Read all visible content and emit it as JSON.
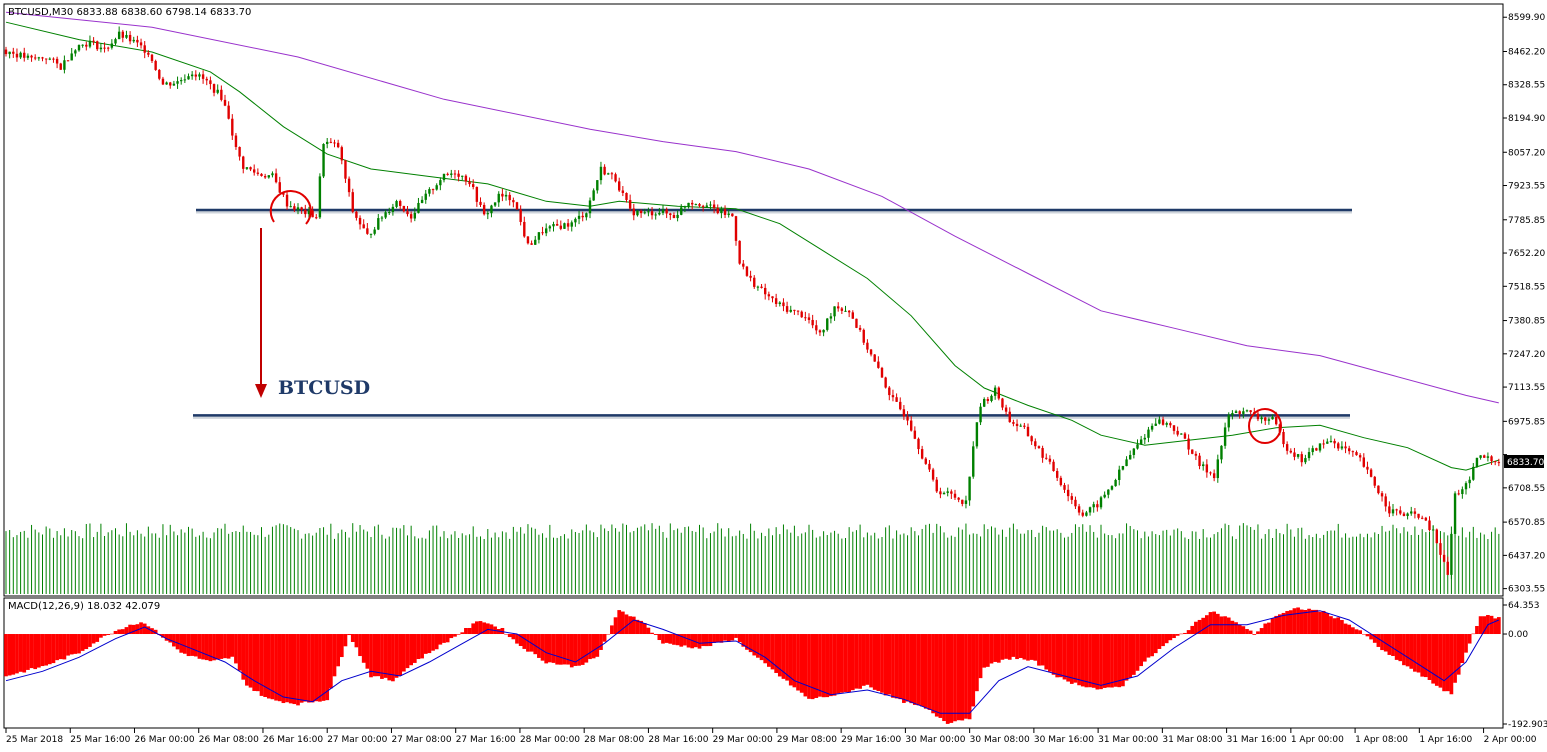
{
  "window": {
    "title": "BTCUSD,M30  6833.88 6838.60 6798.14 6833.70"
  },
  "chart_data": [
    {
      "type": "candlestick",
      "symbol": "BTCUSD",
      "timeframe": "M30",
      "ohlc_header": {
        "open": 6833.88,
        "high": 6838.6,
        "low": 6798.14,
        "close": 6833.7
      },
      "y_ticks": [
        8599.9,
        8462.2,
        8328.55,
        8194.9,
        8057.2,
        7923.55,
        7785.85,
        7652.2,
        7518.55,
        7380.85,
        7247.2,
        7113.55,
        6975.85,
        6842.2,
        6708.55,
        6570.85,
        6437.2,
        6303.55
      ],
      "y_tick_labels": [
        "8599.90",
        "8462.20",
        "8328.55",
        "8194.90",
        "8057.20",
        "7923.55",
        "7785.85",
        "7652.20",
        "7518.55",
        "7380.85",
        "7247.20",
        "7113.55",
        "6975.85",
        "6708.55",
        "6570.85",
        "6437.20",
        "6303.55"
      ],
      "ylim": [
        6290,
        8645
      ],
      "x_tick_labels": [
        "25 Mar 2018",
        "25 Mar 16:00",
        "26 Mar 00:00",
        "26 Mar 08:00",
        "26 Mar 16:00",
        "27 Mar 00:00",
        "27 Mar 08:00",
        "27 Mar 16:00",
        "28 Mar 00:00",
        "28 Mar 08:00",
        "28 Mar 16:00",
        "29 Mar 00:00",
        "29 Mar 08:00",
        "29 Mar 16:00",
        "30 Mar 00:00",
        "30 Mar 08:00",
        "30 Mar 16:00",
        "31 Mar 00:00",
        "31 Mar 08:00",
        "31 Mar 16:00",
        "1 Apr 00:00",
        "1 Apr 08:00",
        "1 Apr 16:00",
        "2 Apr 00:00"
      ],
      "current_price": {
        "value": 6833.7,
        "label": "6833.70"
      },
      "anchors": [
        {
          "x": 0,
          "y": 8470
        },
        {
          "x": 8,
          "y": 8430
        },
        {
          "x": 12,
          "y": 8440
        },
        {
          "x": 16,
          "y": 8400
        },
        {
          "x": 20,
          "y": 8480
        },
        {
          "x": 24,
          "y": 8500
        },
        {
          "x": 28,
          "y": 8470
        },
        {
          "x": 32,
          "y": 8530
        },
        {
          "x": 36,
          "y": 8500
        },
        {
          "x": 40,
          "y": 8460
        },
        {
          "x": 44,
          "y": 8330
        },
        {
          "x": 48,
          "y": 8340
        },
        {
          "x": 52,
          "y": 8380
        },
        {
          "x": 56,
          "y": 8340
        },
        {
          "x": 60,
          "y": 8280
        },
        {
          "x": 62,
          "y": 8200
        },
        {
          "x": 64,
          "y": 8070
        },
        {
          "x": 66,
          "y": 8000
        },
        {
          "x": 70,
          "y": 7970
        },
        {
          "x": 74,
          "y": 7960
        },
        {
          "x": 78,
          "y": 7850
        },
        {
          "x": 82,
          "y": 7820
        },
        {
          "x": 86,
          "y": 7800
        },
        {
          "x": 88,
          "y": 8100
        },
        {
          "x": 92,
          "y": 8080
        },
        {
          "x": 96,
          "y": 7820
        },
        {
          "x": 100,
          "y": 7720
        },
        {
          "x": 104,
          "y": 7800
        },
        {
          "x": 108,
          "y": 7860
        },
        {
          "x": 112,
          "y": 7800
        },
        {
          "x": 116,
          "y": 7880
        },
        {
          "x": 120,
          "y": 7950
        },
        {
          "x": 124,
          "y": 7980
        },
        {
          "x": 128,
          "y": 7940
        },
        {
          "x": 132,
          "y": 7800
        },
        {
          "x": 136,
          "y": 7880
        },
        {
          "x": 140,
          "y": 7870
        },
        {
          "x": 144,
          "y": 7680
        },
        {
          "x": 148,
          "y": 7740
        },
        {
          "x": 152,
          "y": 7760
        },
        {
          "x": 156,
          "y": 7770
        },
        {
          "x": 160,
          "y": 7820
        },
        {
          "x": 164,
          "y": 7990
        },
        {
          "x": 168,
          "y": 7950
        },
        {
          "x": 172,
          "y": 7820
        },
        {
          "x": 176,
          "y": 7810
        },
        {
          "x": 180,
          "y": 7820
        },
        {
          "x": 184,
          "y": 7800
        },
        {
          "x": 188,
          "y": 7860
        },
        {
          "x": 192,
          "y": 7850
        },
        {
          "x": 196,
          "y": 7820
        },
        {
          "x": 200,
          "y": 7800
        },
        {
          "x": 202,
          "y": 7620
        },
        {
          "x": 204,
          "y": 7560
        },
        {
          "x": 208,
          "y": 7500
        },
        {
          "x": 212,
          "y": 7450
        },
        {
          "x": 216,
          "y": 7420
        },
        {
          "x": 220,
          "y": 7400
        },
        {
          "x": 224,
          "y": 7320
        },
        {
          "x": 228,
          "y": 7440
        },
        {
          "x": 232,
          "y": 7420
        },
        {
          "x": 236,
          "y": 7300
        },
        {
          "x": 240,
          "y": 7180
        },
        {
          "x": 244,
          "y": 7060
        },
        {
          "x": 248,
          "y": 6990
        },
        {
          "x": 252,
          "y": 6840
        },
        {
          "x": 256,
          "y": 6700
        },
        {
          "x": 260,
          "y": 6680
        },
        {
          "x": 264,
          "y": 6650
        },
        {
          "x": 266,
          "y": 6880
        },
        {
          "x": 268,
          "y": 7040
        },
        {
          "x": 272,
          "y": 7100
        },
        {
          "x": 276,
          "y": 6980
        },
        {
          "x": 280,
          "y": 6940
        },
        {
          "x": 284,
          "y": 6860
        },
        {
          "x": 288,
          "y": 6780
        },
        {
          "x": 292,
          "y": 6680
        },
        {
          "x": 296,
          "y": 6600
        },
        {
          "x": 300,
          "y": 6640
        },
        {
          "x": 304,
          "y": 6720
        },
        {
          "x": 308,
          "y": 6820
        },
        {
          "x": 312,
          "y": 6900
        },
        {
          "x": 316,
          "y": 6980
        },
        {
          "x": 320,
          "y": 6960
        },
        {
          "x": 324,
          "y": 6900
        },
        {
          "x": 328,
          "y": 6800
        },
        {
          "x": 332,
          "y": 6760
        },
        {
          "x": 336,
          "y": 7000
        },
        {
          "x": 340,
          "y": 7020
        },
        {
          "x": 344,
          "y": 6990
        },
        {
          "x": 348,
          "y": 6980
        },
        {
          "x": 352,
          "y": 6870
        },
        {
          "x": 356,
          "y": 6820
        },
        {
          "x": 360,
          "y": 6870
        },
        {
          "x": 364,
          "y": 6900
        },
        {
          "x": 368,
          "y": 6860
        },
        {
          "x": 372,
          "y": 6820
        },
        {
          "x": 376,
          "y": 6720
        },
        {
          "x": 380,
          "y": 6620
        },
        {
          "x": 384,
          "y": 6600
        },
        {
          "x": 388,
          "y": 6600
        },
        {
          "x": 392,
          "y": 6530
        },
        {
          "x": 396,
          "y": 6360
        },
        {
          "x": 398,
          "y": 6680
        },
        {
          "x": 402,
          "y": 6730
        },
        {
          "x": 404,
          "y": 6830
        },
        {
          "x": 406,
          "y": 6830
        },
        {
          "x": 409,
          "y": 6820
        }
      ],
      "series": [
        {
          "name": "",
          "type": "ma",
          "color": "#008000",
          "pts": [
            [
              0,
              8580
            ],
            [
              20,
              8510
            ],
            [
              40,
              8460
            ],
            [
              56,
              8380
            ],
            [
              64,
              8300
            ],
            [
              76,
              8160
            ],
            [
              88,
              8050
            ],
            [
              100,
              7990
            ],
            [
              116,
              7960
            ],
            [
              132,
              7930
            ],
            [
              148,
              7860
            ],
            [
              160,
              7840
            ],
            [
              168,
              7860
            ],
            [
              184,
              7840
            ],
            [
              200,
              7830
            ],
            [
              212,
              7770
            ],
            [
              224,
              7660
            ],
            [
              236,
              7550
            ],
            [
              248,
              7400
            ],
            [
              260,
              7200
            ],
            [
              268,
              7110
            ],
            [
              280,
              7040
            ],
            [
              292,
              6980
            ],
            [
              300,
              6920
            ],
            [
              312,
              6880
            ],
            [
              324,
              6900
            ],
            [
              336,
              6920
            ],
            [
              348,
              6950
            ],
            [
              360,
              6960
            ],
            [
              372,
              6910
            ],
            [
              384,
              6870
            ],
            [
              396,
              6790
            ],
            [
              400,
              6780
            ],
            [
              409,
              6820
            ]
          ]
        },
        {
          "name": "",
          "type": "ma",
          "color": "#9932cc",
          "pts": [
            [
              0,
              8620
            ],
            [
              40,
              8560
            ],
            [
              80,
              8440
            ],
            [
              120,
              8270
            ],
            [
              160,
              8150
            ],
            [
              180,
              8100
            ],
            [
              200,
              8060
            ],
            [
              220,
              7990
            ],
            [
              240,
              7880
            ],
            [
              260,
              7720
            ],
            [
              280,
              7570
            ],
            [
              300,
              7420
            ],
            [
              320,
              7350
            ],
            [
              340,
              7280
            ],
            [
              360,
              7240
            ],
            [
              380,
              7160
            ],
            [
              400,
              7080
            ],
            [
              409,
              7050
            ]
          ]
        },
        {
          "name": "",
          "type": "volume",
          "color": "#008000"
        }
      ],
      "annotations": [
        {
          "text": "BTCUSD",
          "type": "label"
        }
      ],
      "hlines": [
        7825,
        7000
      ]
    },
    {
      "type": "histogram",
      "indicator": "MACD",
      "title": "MACD(12,26,9) 18.032 42.079",
      "y_tick_labels": [
        "64.353",
        "0.00",
        "-192.903"
      ],
      "ylim": [
        -192.903,
        64.353
      ],
      "anchors": [
        {
          "x": 0,
          "y": -90
        },
        {
          "x": 10,
          "y": -70
        },
        {
          "x": 20,
          "y": -40
        },
        {
          "x": 28,
          "y": 0
        },
        {
          "x": 34,
          "y": 20
        },
        {
          "x": 38,
          "y": 25
        },
        {
          "x": 42,
          "y": 0
        },
        {
          "x": 48,
          "y": -40
        },
        {
          "x": 56,
          "y": -60
        },
        {
          "x": 62,
          "y": -50
        },
        {
          "x": 66,
          "y": -110
        },
        {
          "x": 72,
          "y": -140
        },
        {
          "x": 80,
          "y": -150
        },
        {
          "x": 88,
          "y": -140
        },
        {
          "x": 94,
          "y": 0
        },
        {
          "x": 100,
          "y": -90
        },
        {
          "x": 106,
          "y": -100
        },
        {
          "x": 112,
          "y": -60
        },
        {
          "x": 118,
          "y": -30
        },
        {
          "x": 124,
          "y": 0
        },
        {
          "x": 130,
          "y": 30
        },
        {
          "x": 136,
          "y": 10
        },
        {
          "x": 140,
          "y": -20
        },
        {
          "x": 148,
          "y": -60
        },
        {
          "x": 156,
          "y": -70
        },
        {
          "x": 162,
          "y": -50
        },
        {
          "x": 168,
          "y": 50
        },
        {
          "x": 174,
          "y": 30
        },
        {
          "x": 180,
          "y": -20
        },
        {
          "x": 190,
          "y": -30
        },
        {
          "x": 200,
          "y": -10
        },
        {
          "x": 204,
          "y": -40
        },
        {
          "x": 212,
          "y": -90
        },
        {
          "x": 220,
          "y": -140
        },
        {
          "x": 228,
          "y": -130
        },
        {
          "x": 236,
          "y": -110
        },
        {
          "x": 244,
          "y": -140
        },
        {
          "x": 252,
          "y": -160
        },
        {
          "x": 258,
          "y": -190
        },
        {
          "x": 264,
          "y": -180
        },
        {
          "x": 268,
          "y": -70
        },
        {
          "x": 276,
          "y": -50
        },
        {
          "x": 282,
          "y": -60
        },
        {
          "x": 290,
          "y": -100
        },
        {
          "x": 300,
          "y": -120
        },
        {
          "x": 306,
          "y": -110
        },
        {
          "x": 312,
          "y": -60
        },
        {
          "x": 318,
          "y": -20
        },
        {
          "x": 324,
          "y": 10
        },
        {
          "x": 330,
          "y": 50
        },
        {
          "x": 336,
          "y": 30
        },
        {
          "x": 342,
          "y": 0
        },
        {
          "x": 348,
          "y": 40
        },
        {
          "x": 354,
          "y": 55
        },
        {
          "x": 360,
          "y": 50
        },
        {
          "x": 366,
          "y": 30
        },
        {
          "x": 372,
          "y": 0
        },
        {
          "x": 378,
          "y": -40
        },
        {
          "x": 384,
          "y": -70
        },
        {
          "x": 392,
          "y": -110
        },
        {
          "x": 396,
          "y": -130
        },
        {
          "x": 400,
          "y": -40
        },
        {
          "x": 404,
          "y": 40
        },
        {
          "x": 409,
          "y": 35
        }
      ],
      "signal": [
        [
          0,
          -100
        ],
        [
          10,
          -80
        ],
        [
          20,
          -50
        ],
        [
          30,
          -10
        ],
        [
          38,
          15
        ],
        [
          44,
          -10
        ],
        [
          52,
          -35
        ],
        [
          60,
          -60
        ],
        [
          68,
          -100
        ],
        [
          76,
          -135
        ],
        [
          84,
          -145
        ],
        [
          92,
          -100
        ],
        [
          100,
          -80
        ],
        [
          108,
          -90
        ],
        [
          116,
          -60
        ],
        [
          124,
          -25
        ],
        [
          132,
          10
        ],
        [
          140,
          0
        ],
        [
          148,
          -40
        ],
        [
          156,
          -60
        ],
        [
          164,
          -20
        ],
        [
          172,
          30
        ],
        [
          180,
          10
        ],
        [
          190,
          -20
        ],
        [
          200,
          -15
        ],
        [
          208,
          -50
        ],
        [
          216,
          -100
        ],
        [
          226,
          -130
        ],
        [
          236,
          -120
        ],
        [
          246,
          -140
        ],
        [
          256,
          -170
        ],
        [
          264,
          -170
        ],
        [
          272,
          -100
        ],
        [
          280,
          -70
        ],
        [
          290,
          -90
        ],
        [
          300,
          -110
        ],
        [
          310,
          -90
        ],
        [
          320,
          -30
        ],
        [
          330,
          20
        ],
        [
          340,
          20
        ],
        [
          350,
          40
        ],
        [
          360,
          50
        ],
        [
          368,
          30
        ],
        [
          376,
          -10
        ],
        [
          384,
          -50
        ],
        [
          394,
          -100
        ],
        [
          400,
          -60
        ],
        [
          406,
          20
        ],
        [
          409,
          30
        ]
      ]
    }
  ]
}
